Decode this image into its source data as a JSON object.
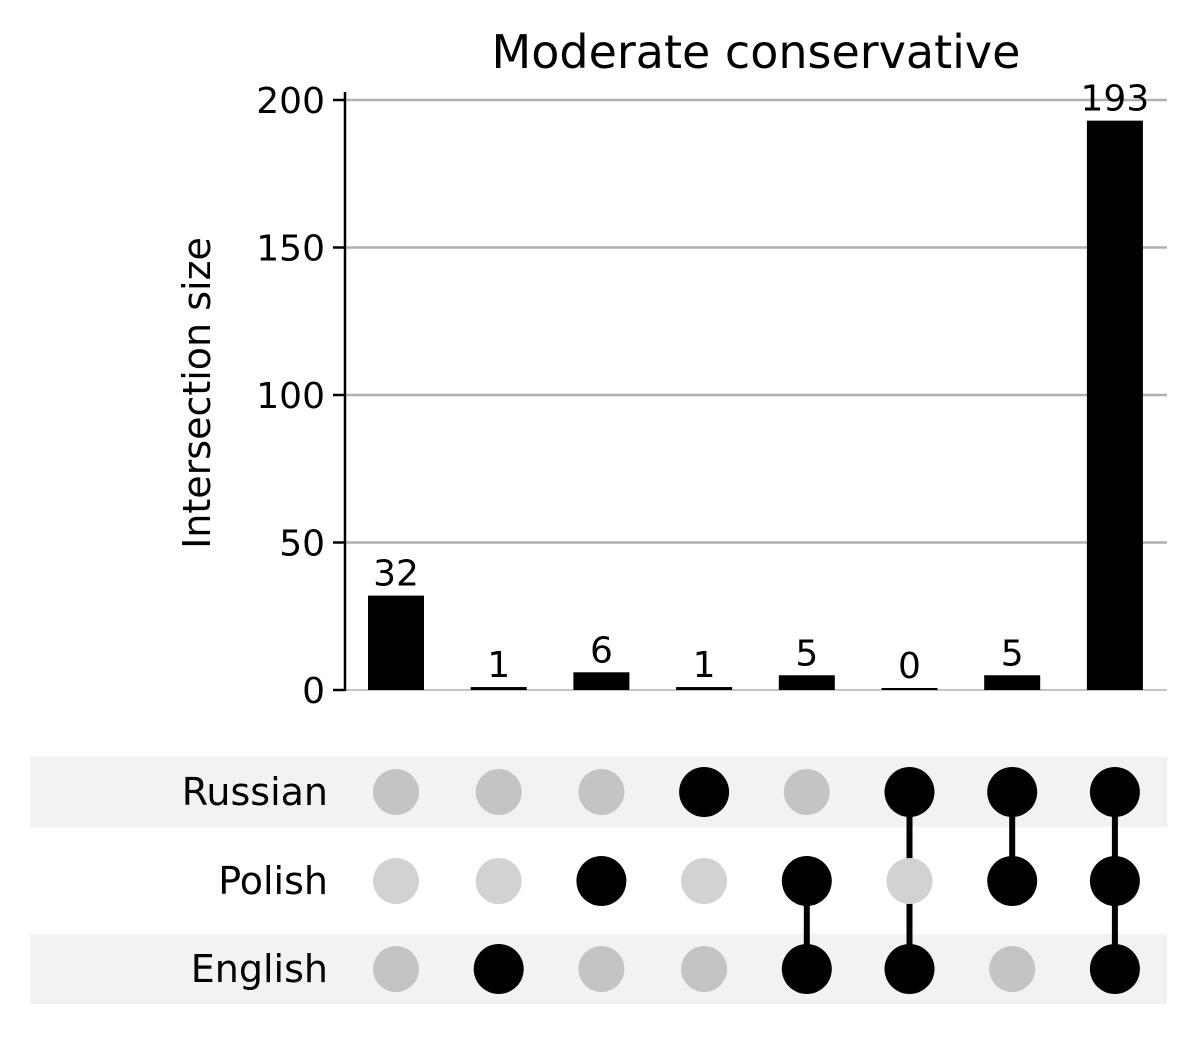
{
  "chart_data": {
    "type": "upset",
    "title": "Moderate conservative",
    "ylabel": "Intersection size",
    "ylim": [
      0,
      200
    ],
    "yticks": [
      0,
      50,
      100,
      150,
      200
    ],
    "grid": true,
    "sets": [
      "Russian",
      "Polish",
      "English"
    ],
    "values": [
      32,
      1,
      6,
      1,
      5,
      0,
      5,
      193
    ],
    "memberships": [
      [],
      [
        "English"
      ],
      [
        "Polish"
      ],
      [
        "Russian"
      ],
      [
        "Polish",
        "English"
      ],
      [
        "Russian",
        "English"
      ],
      [
        "Russian",
        "Polish"
      ],
      [
        "Russian",
        "Polish",
        "English"
      ]
    ]
  },
  "colors": {
    "bar": "#000000",
    "dot_active": "#000000",
    "dot_inactive_shaded": "#c4c4c4",
    "dot_inactive_plain": "#d2d2d2",
    "row_shade": "#f2f2f2",
    "grid": "#b0b0b0"
  }
}
